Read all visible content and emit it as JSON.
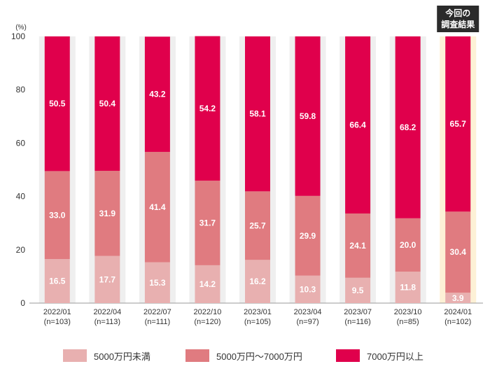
{
  "chart_data": {
    "type": "bar",
    "stacked": true,
    "ylabel": "(%)",
    "ylim": [
      0,
      100
    ],
    "yticks": [
      0,
      20,
      40,
      60,
      80,
      100
    ],
    "categories": [
      {
        "date": "2022/01",
        "n": "(n=103)"
      },
      {
        "date": "2022/04",
        "n": "(n=113)"
      },
      {
        "date": "2022/07",
        "n": "(n=111)"
      },
      {
        "date": "2022/10",
        "n": "(n=120)"
      },
      {
        "date": "2023/01",
        "n": "(n=105)"
      },
      {
        "date": "2023/04",
        "n": "(n=97)"
      },
      {
        "date": "2023/07",
        "n": "(n=116)"
      },
      {
        "date": "2023/10",
        "n": "(n=85)"
      },
      {
        "date": "2024/01",
        "n": "(n=102)"
      }
    ],
    "series": [
      {
        "name": "5000万円未満",
        "color": "#e8b0b0",
        "values": [
          16.5,
          17.7,
          15.3,
          14.2,
          16.2,
          10.3,
          9.5,
          11.8,
          3.9
        ]
      },
      {
        "name": "5000万円～7000万円",
        "color": "#e07b80",
        "values": [
          33.0,
          31.9,
          41.4,
          31.7,
          25.7,
          29.9,
          24.1,
          20.0,
          30.4
        ]
      },
      {
        "name": "7000万円以上",
        "color": "#e0004c",
        "values": [
          50.5,
          50.4,
          43.2,
          54.2,
          58.1,
          59.8,
          66.4,
          68.2,
          65.7
        ]
      }
    ],
    "highlight": {
      "index": 8,
      "label_lines": [
        "今回の",
        "調査結果"
      ],
      "color": "#fdf1d6",
      "badge_color": "#2b2b2b"
    },
    "grid": false,
    "legend_position": "bottom"
  }
}
